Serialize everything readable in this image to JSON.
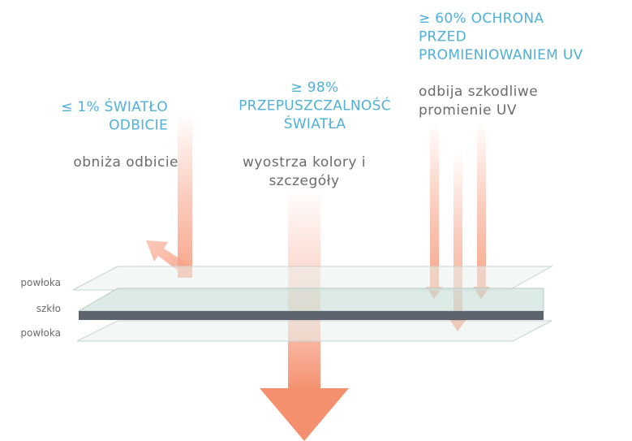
{
  "columns": [
    {
      "title": [
        "≤ 1% ŚWIATŁO",
        "ODBICIE"
      ],
      "description": [
        "obniża odbicie"
      ]
    },
    {
      "title": [
        "≥ 98%",
        "PRZEPUSZCZALNOŚĆ",
        "ŚWIATŁA"
      ],
      "description": [
        "wyostrza kolory i",
        "szczegóły"
      ]
    },
    {
      "title": [
        "≥ 60% OCHRONA",
        "PRZED",
        "PROMIENIOWANIEM UV"
      ],
      "description": [
        "odbija szkodliwe",
        "promienie UV"
      ]
    }
  ],
  "layers": [
    "powłoka",
    "szkło",
    "powłoka"
  ]
}
